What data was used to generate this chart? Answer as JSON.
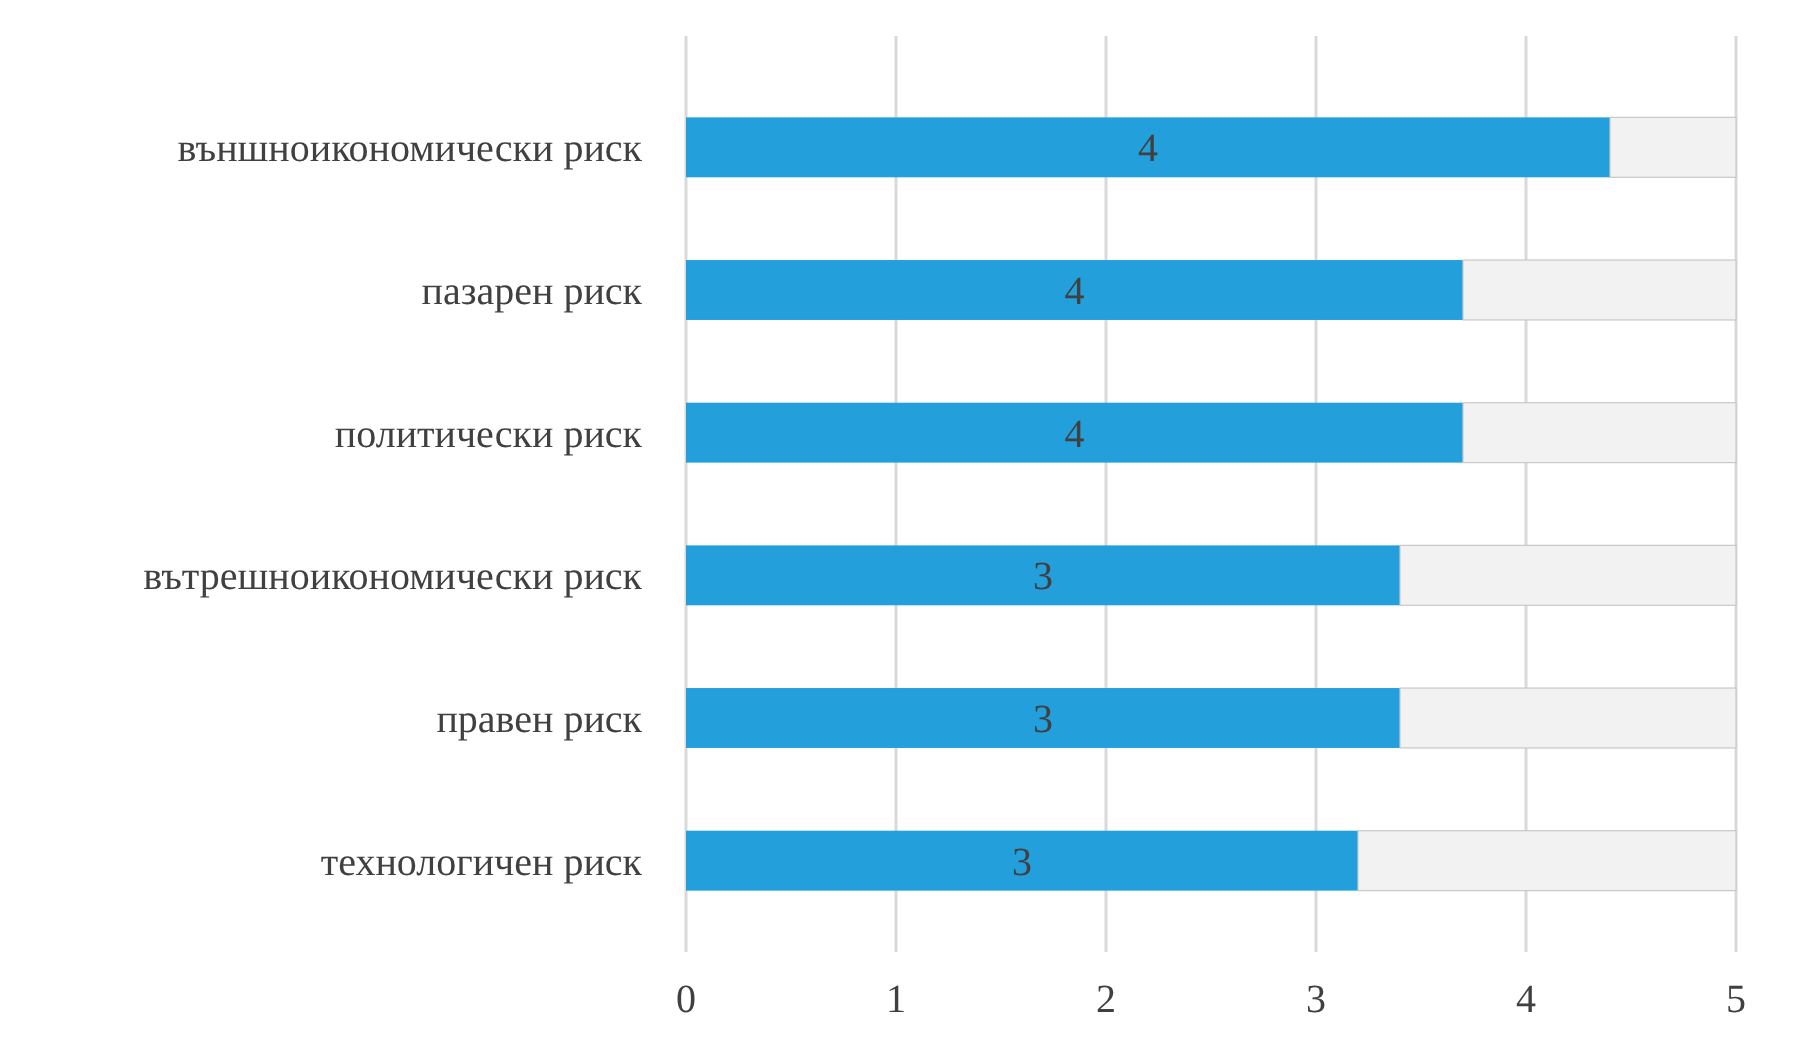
{
  "chart_data": {
    "type": "bar",
    "orientation": "horizontal",
    "stacked": true,
    "grid": "x",
    "categories": [
      "външноикономически риск",
      "пазарен риск",
      "политически риск",
      "вътрешноикономически риск",
      "правен риск",
      "технологичен риск"
    ],
    "series": [
      {
        "color": "#239fdb",
        "values": [
          4.4,
          3.7,
          3.7,
          3.4,
          3.4,
          3.2
        ],
        "value_labels": [
          "4",
          "4",
          "4",
          "3",
          "3",
          "3"
        ]
      },
      {
        "color": "#f2f2f2",
        "values": [
          0.6,
          1.3,
          1.3,
          1.6,
          1.6,
          1.8
        ]
      }
    ],
    "xlim": [
      0,
      5
    ],
    "xticks": [
      0,
      1,
      2,
      3,
      4,
      5
    ]
  }
}
